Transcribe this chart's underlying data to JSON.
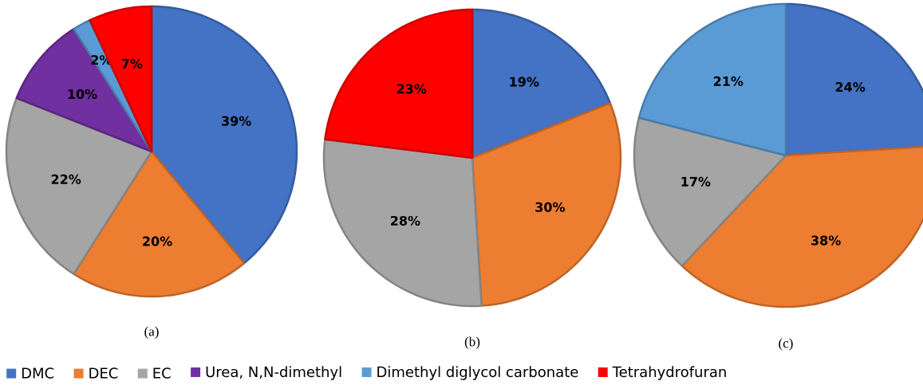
{
  "chart_data": [
    {
      "type": "pie",
      "title": "(a)",
      "categories": [
        "DMC",
        "DEC",
        "EC",
        "Urea, N,N-dimethyl",
        "Dimethyl diglycol carbonate",
        "Tetrahydrofuran"
      ],
      "values": [
        39,
        20,
        22,
        10,
        2,
        7
      ],
      "value_labels": [
        "39%",
        "20%",
        "22%",
        "10%",
        "2%",
        "7%"
      ],
      "colors": [
        "#4472c4",
        "#ed7d31",
        "#a5a5a5",
        "#7030a0",
        "#5b9bd5",
        "#ff0000"
      ],
      "legend": "bottom"
    },
    {
      "type": "pie",
      "title": "(b)",
      "categories": [
        null,
        null,
        null,
        null
      ],
      "values": [
        19,
        30,
        28,
        23
      ],
      "value_labels": [
        "19%",
        "30%",
        "28%",
        "23%"
      ],
      "colors": [
        "#4472c4",
        "#ed7d31",
        "#a5a5a5",
        "#ff0000"
      ]
    },
    {
      "type": "pie",
      "title": "(c)",
      "categories": [
        null,
        null,
        null,
        null
      ],
      "values": [
        24,
        38,
        17,
        21
      ],
      "value_labels": [
        "24%",
        "38%",
        "17%",
        "21%"
      ],
      "colors": [
        "#4472c4",
        "#ed7d31",
        "#a5a5a5",
        "#5b9bd5"
      ]
    }
  ]
}
